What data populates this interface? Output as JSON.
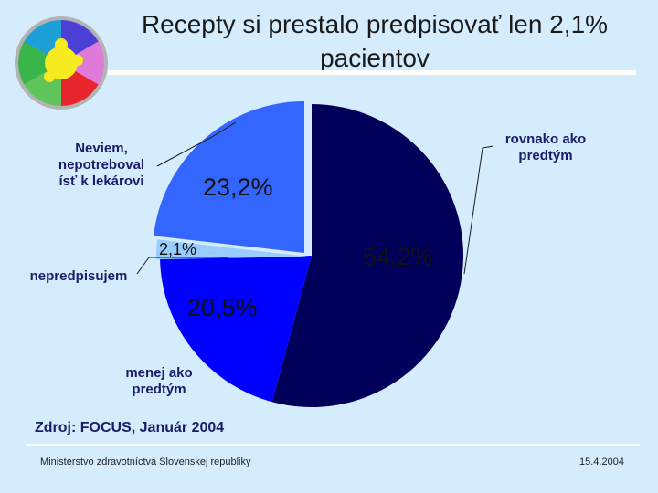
{
  "slide": {
    "title": "Recepty si prestalo predpisovať len 2,1% pacientov",
    "source": "Zdroj: FOCUS, Január 2004",
    "footer_left": "Ministerstvo zdravotníctva Slovenskej republiky",
    "footer_right": "15.4.2004",
    "logo_icon": "puzzle-logo-icon"
  },
  "chart_data": {
    "type": "pie",
    "title": "Recepty si prestalo predpisovať len 2,1% pacientov",
    "start_angle_deg": 0,
    "direction": "clockwise",
    "slices": [
      {
        "key": "same",
        "label": "rovnako ako predtým",
        "value": 54.2,
        "value_label": "54,2%",
        "color": "#00005a"
      },
      {
        "key": "less",
        "label": "menej ako predtým",
        "value": 20.5,
        "value_label": "20,5%",
        "color": "#0000ff"
      },
      {
        "key": "stopped",
        "label": "nepredpisujem",
        "value": 2.1,
        "value_label": "2,1%",
        "color": "#99ccff"
      },
      {
        "key": "dunno",
        "label": "Neviem, nepotreboval ísť k lekárovi",
        "value": 23.2,
        "value_label": "23,2%",
        "color": "#3366ff"
      }
    ]
  }
}
